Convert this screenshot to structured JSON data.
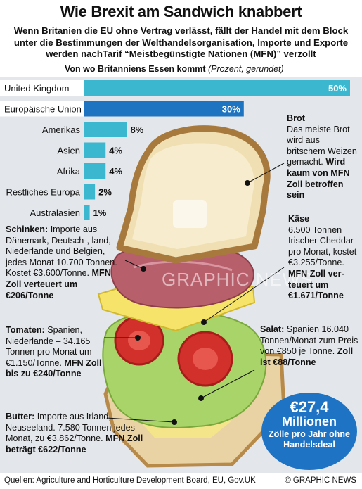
{
  "title": "Wie Brexit am Sandwich knabbert",
  "subtitle": "Wenn Britanien die EU ohne Vertrag verlässt, fällt der Handel mit dem Block unter die Bestimmungen der Welthandelsorganisation, Importe und Exporte werden nachTarif  “Meistbegünstigte Nationen (MFN)” verzollt",
  "chart_data": {
    "type": "bar",
    "orientation": "horizontal",
    "title": "Von wo Britanniens Essen kommt",
    "title_note": "(Prozent, gerundet)",
    "categories": [
      "United Kingdom",
      "Europäische Union",
      "Amerikas",
      "Asien",
      "Afrika",
      "Restliches Europa",
      "Australasien"
    ],
    "values": [
      50,
      30,
      8,
      4,
      4,
      2,
      1
    ],
    "value_labels": [
      "50%",
      "30%",
      "8%",
      "4%",
      "4%",
      "2%",
      "1%"
    ],
    "colors": [
      "#3bb7cf",
      "#1f74c1",
      "#3bb7cf",
      "#3bb7cf",
      "#3bb7cf",
      "#3bb7cf",
      "#3bb7cf"
    ],
    "xlim": [
      0,
      50
    ]
  },
  "annotations": {
    "brot": {
      "head": "Brot",
      "body": "Das meiste Brot wird aus britschem Weizen gemacht.",
      "bold": "Wird kaum von MFN Zoll betroffen sein"
    },
    "schinken": {
      "head": "Schinken:",
      "body": "Importe aus Dänemark, Deutsch-, land, Niederlande und Belgien, jedes Monat 10.700 Tonnen. Kostet €3.600/Tonne.",
      "bold": "MFN Zoll verteuert um €206/Tonne"
    },
    "kaese": {
      "head": "Käse",
      "body": "6.500 Tonnen Irischer Cheddar pro Monat, kostet €3.255/Tonne.",
      "bold": "MFN Zoll ver- teuert um €1.671/Tonne"
    },
    "tomaten": {
      "head": "Tomaten:",
      "body": "Spanien, Niederlande – 34.165 Tonnen pro Monat um €1.150/Tonne.",
      "bold": "MFN Zoll bis zu €240/Tonne"
    },
    "salat": {
      "head": "Salat:",
      "body": "Spanien 16.040 Tonnen/Monat zum Preis von €850 je Tonne.",
      "bold": "Zoll ist €88/Tonne"
    },
    "butter": {
      "head": "Butter:",
      "body": "Importe aus Irland, Neuseeland. 7.580 Tonnen jedes Monat, zu €3.862/Tonne.",
      "bold": "MFN Zoll beträgt €622/Tonne"
    }
  },
  "callout": {
    "value": "€27,4",
    "unit": "Millionen",
    "note": "Zölle pro Jahr ohne Handelsdeal"
  },
  "watermark": "GRAPHIC NEWS",
  "source": "Quellen: Agriculture and Horticulture Development Board, EU, Gov.UK",
  "credit": "© GRAPHIC NEWS"
}
